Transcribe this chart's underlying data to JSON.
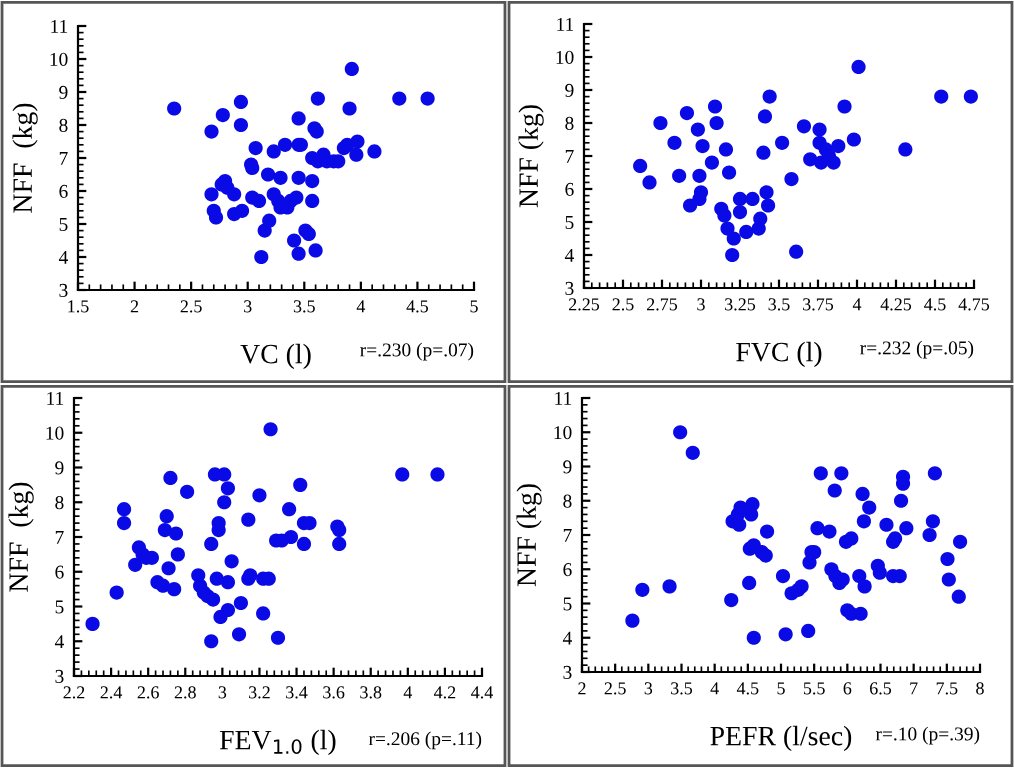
{
  "chart_data": [
    {
      "type": "scatter",
      "xlabel": "VC (l)",
      "ylabel": "NFF  (kg)",
      "annotations": [
        "r=.230 (p=.07)"
      ],
      "color": "#0a0ae6",
      "marker": "circle",
      "grid": false,
      "xlim": [
        1.5,
        5
      ],
      "xticks": [
        1.5,
        2,
        2.5,
        3,
        3.5,
        4,
        4.5,
        5
      ],
      "ylim": [
        3,
        11
      ],
      "yticks": [
        3,
        4,
        5,
        6,
        7,
        8,
        9,
        10,
        11
      ],
      "x": [
        2.35,
        2.68,
        2.78,
        2.94,
        2.94,
        2.68,
        2.7,
        2.72,
        2.77,
        2.8,
        2.82,
        2.88,
        2.88,
        2.95,
        3.03,
        3.04,
        3.07,
        3.04,
        3.1,
        3.12,
        3.15,
        3.19,
        3.18,
        3.23,
        3.23,
        3.27,
        3.29,
        3.33,
        3.29,
        3.35,
        3.38,
        3.41,
        3.43,
        3.45,
        3.45,
        3.47,
        3.45,
        3.45,
        3.51,
        3.54,
        3.57,
        3.57,
        3.57,
        3.59,
        3.61,
        3.62,
        3.6,
        3.62,
        3.67,
        3.7,
        3.76,
        3.8,
        3.85,
        3.88,
        3.9,
        3.92,
        3.97,
        3.96,
        4.12,
        4.34,
        4.59
      ],
      "values": [
        8.5,
        7.8,
        8.3,
        8.7,
        8.0,
        5.9,
        5.4,
        5.2,
        6.2,
        6.3,
        6.1,
        5.9,
        5.3,
        5.4,
        6.8,
        6.7,
        7.3,
        5.8,
        5.7,
        4.0,
        4.8,
        5.1,
        6.5,
        7.2,
        5.9,
        5.7,
        6.4,
        7.4,
        5.5,
        5.5,
        5.7,
        4.5,
        5.8,
        8.2,
        7.4,
        7.4,
        6.4,
        4.1,
        4.8,
        4.7,
        5.7,
        6.3,
        7.0,
        7.9,
        7.8,
        8.8,
        4.2,
        6.9,
        7.1,
        6.9,
        6.9,
        6.9,
        7.3,
        7.4,
        8.5,
        9.7,
        7.5,
        7.1,
        7.2,
        8.8,
        8.8
      ]
    },
    {
      "type": "scatter",
      "xlabel": "FVC (l)",
      "ylabel": "NFF (kg)",
      "annotations": [
        "r=.232 (p=.05)"
      ],
      "color": "#0a0ae6",
      "marker": "circle",
      "grid": false,
      "xlim": [
        2.25,
        4.75
      ],
      "xticks": [
        2.25,
        2.5,
        2.75,
        3,
        3.25,
        3.5,
        3.75,
        4,
        4.25,
        4.5,
        4.75
      ],
      "ylim": [
        3,
        11
      ],
      "yticks": [
        3,
        4,
        5,
        6,
        7,
        8,
        9,
        10,
        11
      ],
      "x": [
        2.61,
        2.67,
        2.74,
        2.83,
        2.86,
        2.91,
        2.93,
        2.98,
        2.99,
        2.99,
        3.01,
        3.0,
        3.07,
        3.09,
        3.1,
        3.13,
        3.15,
        3.16,
        3.17,
        3.18,
        3.2,
        3.21,
        3.25,
        3.25,
        3.29,
        3.33,
        3.37,
        3.38,
        3.4,
        3.41,
        3.42,
        3.43,
        3.44,
        3.52,
        3.58,
        3.61,
        3.66,
        3.7,
        3.76,
        3.76,
        3.77,
        3.8,
        3.82,
        3.85,
        3.88,
        3.92,
        3.98,
        4.01,
        4.31,
        4.54,
        4.73
      ],
      "values": [
        6.7,
        6.2,
        8.0,
        7.4,
        6.4,
        8.3,
        5.5,
        7.8,
        6.4,
        5.7,
        7.3,
        5.9,
        6.8,
        8.5,
        8.0,
        5.4,
        5.2,
        7.2,
        4.8,
        6.5,
        4.0,
        4.5,
        5.7,
        5.3,
        4.7,
        5.7,
        4.8,
        5.1,
        7.1,
        8.2,
        5.9,
        5.5,
        8.8,
        7.4,
        6.3,
        4.1,
        7.9,
        6.9,
        7.8,
        7.4,
        6.8,
        7.2,
        7.0,
        6.8,
        7.3,
        8.5,
        7.5,
        9.7,
        7.2,
        8.8,
        8.8
      ]
    },
    {
      "type": "scatter",
      "xlabel": "FEV$_{1.0}$ (l)",
      "ylabel": "NFF  (kg)",
      "annotations": [
        "r=.206 (p=.11)"
      ],
      "color": "#0a0ae6",
      "marker": "circle",
      "grid": false,
      "xlim": [
        2.2,
        4.4
      ],
      "xticks": [
        2.2,
        2.4,
        2.6,
        2.8,
        3,
        3.2,
        3.4,
        3.6,
        3.8,
        4,
        4.2,
        4.4
      ],
      "ylim": [
        3,
        11
      ],
      "yticks": [
        3,
        4,
        5,
        6,
        7,
        8,
        9,
        10,
        11
      ],
      "x": [
        2.3,
        2.43,
        2.47,
        2.47,
        2.53,
        2.55,
        2.57,
        2.59,
        2.62,
        2.65,
        2.68,
        2.7,
        2.69,
        2.71,
        2.72,
        2.74,
        2.75,
        2.76,
        2.81,
        2.87,
        2.88,
        2.9,
        2.92,
        2.94,
        2.95,
        2.94,
        2.96,
        2.98,
        2.98,
        2.97,
        2.99,
        3.01,
        3.01,
        3.03,
        3.03,
        3.03,
        3.05,
        3.09,
        3.1,
        3.14,
        3.14,
        3.15,
        3.2,
        3.22,
        3.22,
        3.25,
        3.26,
        3.29,
        3.3,
        3.32,
        3.36,
        3.37,
        3.42,
        3.44,
        3.44,
        3.47,
        3.62,
        3.63,
        3.63,
        3.97,
        4.16
      ],
      "values": [
        4.5,
        5.4,
        7.8,
        7.4,
        6.2,
        6.7,
        6.5,
        6.4,
        6.4,
        5.7,
        5.6,
        7.6,
        7.2,
        6.1,
        8.7,
        5.5,
        7.1,
        6.5,
        8.3,
        5.9,
        5.6,
        5.4,
        5.3,
        4.0,
        5.2,
        6.8,
        8.8,
        7.4,
        7.2,
        5.8,
        4.7,
        8.8,
        8.0,
        8.4,
        4.9,
        5.7,
        6.3,
        4.2,
        5.1,
        7.5,
        5.8,
        5.9,
        8.2,
        5.8,
        4.8,
        5.8,
        10.1,
        6.9,
        4.1,
        6.9,
        7.8,
        7.0,
        8.5,
        6.8,
        7.4,
        7.4,
        7.3,
        6.8,
        7.2,
        8.8,
        8.8
      ]
    },
    {
      "type": "scatter",
      "xlabel": "PEFR (l/sec)",
      "ylabel": "NFF (kg)",
      "annotations": [
        "r=.10 (p=.39)"
      ],
      "color": "#0a0ae6",
      "marker": "circle",
      "grid": false,
      "xlim": [
        2,
        8
      ],
      "xticks": [
        2,
        2.5,
        3,
        3.5,
        4,
        4.5,
        5,
        5.5,
        6,
        6.5,
        7,
        7.5,
        8
      ],
      "ylim": [
        3,
        11
      ],
      "yticks": [
        3,
        4,
        5,
        6,
        7,
        8,
        9,
        10,
        11
      ],
      "x": [
        2.76,
        2.91,
        3.32,
        3.48,
        3.67,
        4.25,
        4.27,
        4.35,
        4.37,
        4.39,
        4.52,
        4.53,
        4.55,
        4.57,
        4.59,
        4.59,
        4.71,
        4.77,
        4.79,
        5.03,
        5.07,
        5.16,
        5.26,
        5.31,
        5.41,
        5.43,
        5.46,
        5.5,
        5.55,
        5.6,
        5.73,
        5.76,
        5.81,
        5.82,
        5.88,
        5.91,
        5.93,
        5.98,
        6.0,
        6.06,
        6.06,
        6.18,
        6.2,
        6.23,
        6.25,
        6.26,
        6.33,
        6.46,
        6.49,
        6.59,
        6.69,
        6.69,
        6.72,
        6.79,
        6.81,
        6.84,
        6.84,
        6.89,
        7.24,
        7.29,
        7.32,
        7.51,
        7.53,
        7.68,
        7.7
      ],
      "values": [
        4.5,
        5.4,
        5.5,
        10.0,
        9.4,
        5.1,
        7.4,
        7.6,
        7.3,
        7.8,
        5.6,
        6.6,
        7.6,
        7.9,
        6.7,
        4.0,
        6.5,
        6.4,
        7.1,
        5.8,
        4.1,
        5.3,
        5.4,
        5.5,
        4.2,
        6.2,
        6.5,
        6.5,
        7.2,
        8.8,
        7.1,
        6.0,
        8.3,
        5.8,
        5.6,
        8.8,
        5.7,
        6.8,
        4.8,
        4.7,
        6.9,
        5.8,
        4.7,
        8.2,
        7.4,
        5.5,
        7.8,
        6.1,
        5.9,
        7.3,
        5.8,
        6.8,
        6.9,
        5.8,
        8.0,
        8.7,
        8.5,
        7.2,
        7.0,
        7.4,
        8.8,
        6.3,
        5.7,
        5.2,
        6.8
      ]
    }
  ]
}
